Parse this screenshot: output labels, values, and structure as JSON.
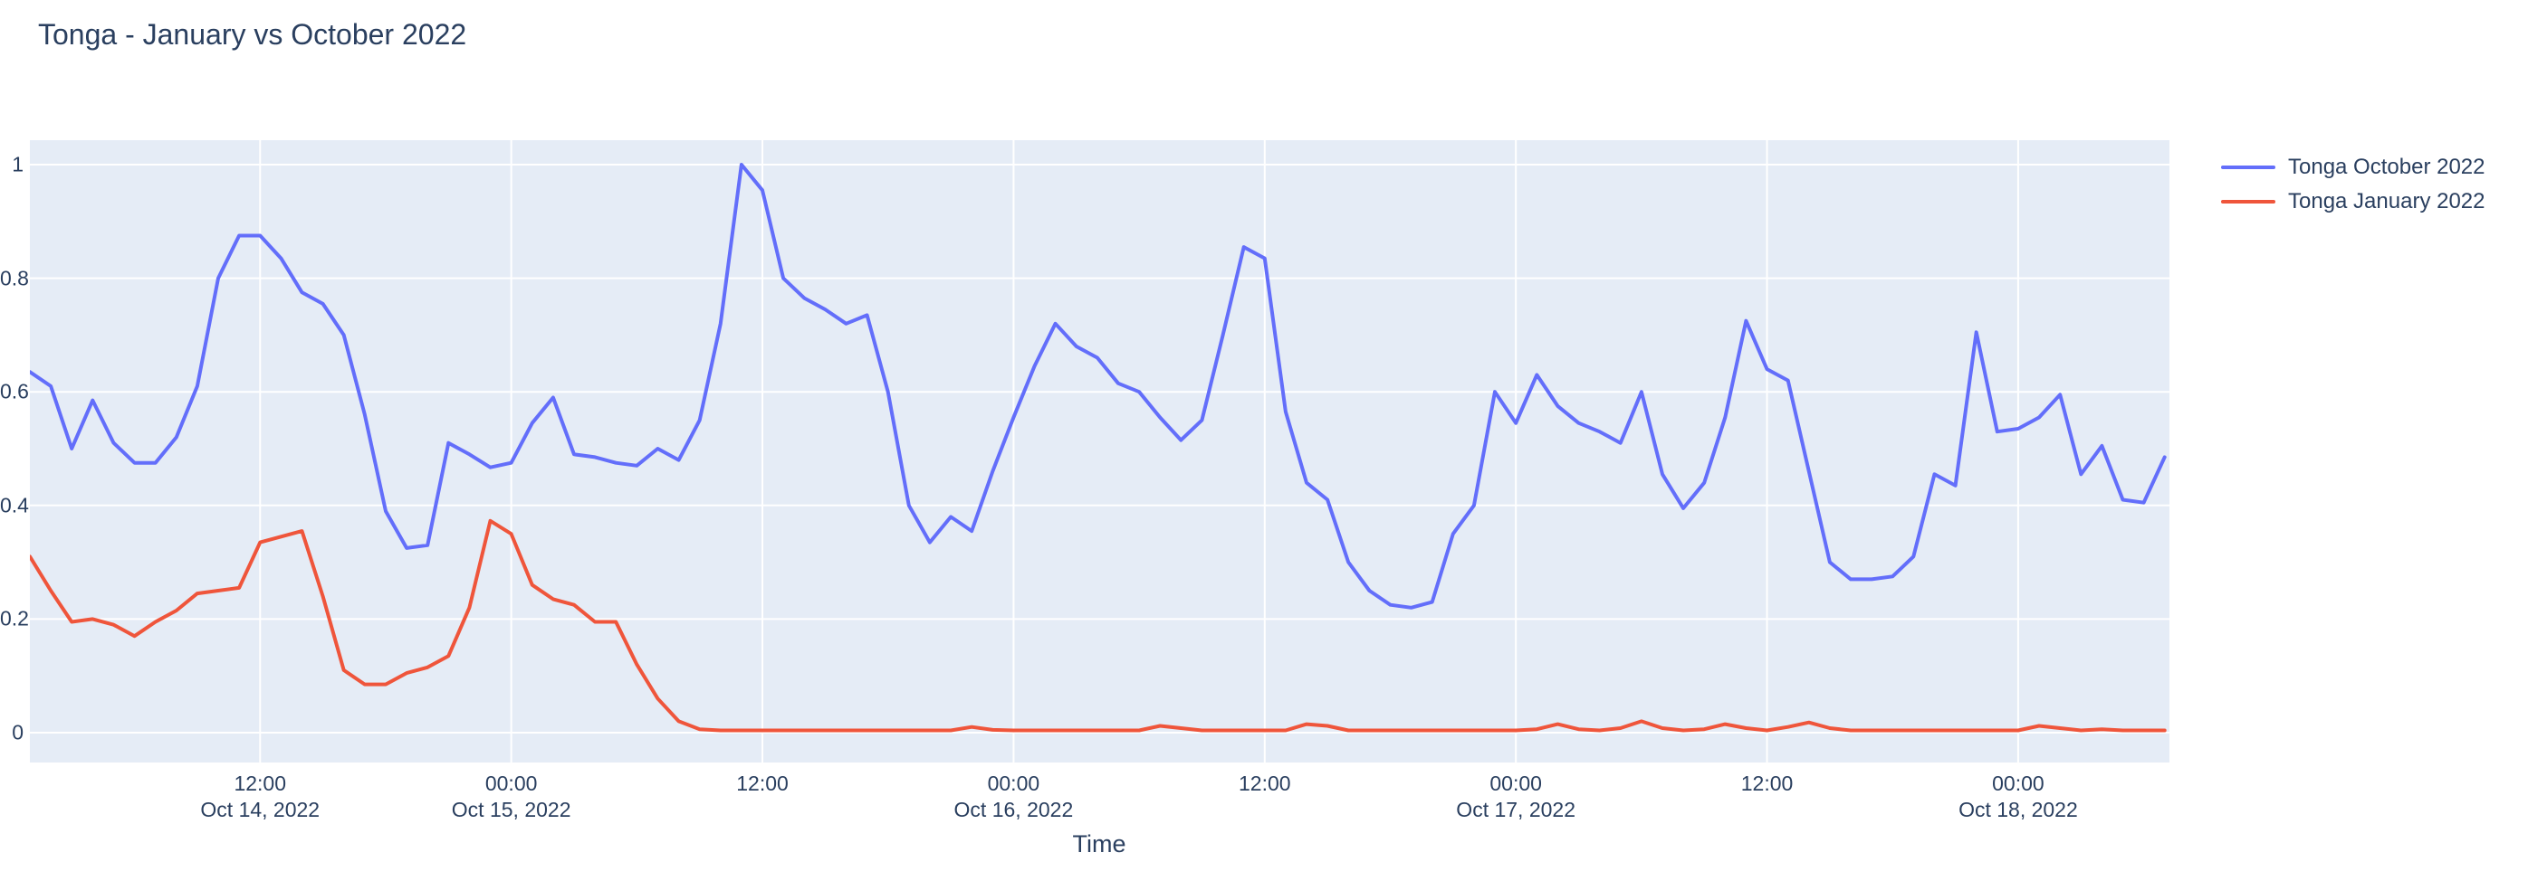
{
  "page_title": "Tonga - January vs October 2022",
  "colors": {
    "text": "#2a3f5f",
    "plot_background": "#E5ECF6",
    "gridline": "#ffffff",
    "series_october": "#636EFA",
    "series_january": "#EF553B"
  },
  "chart_data": {
    "type": "line",
    "title": "Tonga - January vs October 2022",
    "xlabel": "Time",
    "ylabel": "",
    "x_start": "2022-10-14 01:00",
    "x_step_hours": 1,
    "n_points": 103,
    "ylim": [
      0,
      1
    ],
    "grid": true,
    "legend_position": "outside-top-right",
    "yticks": [
      {
        "value": 0,
        "label": "0"
      },
      {
        "value": 0.2,
        "label": "0.2"
      },
      {
        "value": 0.4,
        "label": "0.4"
      },
      {
        "value": 0.6,
        "label": "0.6"
      },
      {
        "value": 0.8,
        "label": "0.8"
      },
      {
        "value": 1,
        "label": "1"
      }
    ],
    "xticks": [
      {
        "hour_index": 11,
        "time": "12:00",
        "date": "Oct 14, 2022"
      },
      {
        "hour_index": 23,
        "time": "00:00",
        "date": "Oct 15, 2022"
      },
      {
        "hour_index": 35,
        "time": "12:00",
        "date": ""
      },
      {
        "hour_index": 47,
        "time": "00:00",
        "date": "Oct 16, 2022"
      },
      {
        "hour_index": 59,
        "time": "12:00",
        "date": ""
      },
      {
        "hour_index": 71,
        "time": "00:00",
        "date": "Oct 17, 2022"
      },
      {
        "hour_index": 83,
        "time": "12:00",
        "date": ""
      },
      {
        "hour_index": 95,
        "time": "00:00",
        "date": "Oct 18, 2022"
      }
    ],
    "series": [
      {
        "name": "Tonga October 2022",
        "color": "#636EFA",
        "values": [
          0.635,
          0.61,
          0.5,
          0.585,
          0.51,
          0.475,
          0.475,
          0.52,
          0.61,
          0.8,
          0.875,
          0.875,
          0.835,
          0.775,
          0.755,
          0.7,
          0.56,
          0.39,
          0.325,
          0.33,
          0.51,
          0.49,
          0.467,
          0.475,
          0.545,
          0.59,
          0.49,
          0.485,
          0.475,
          0.47,
          0.5,
          0.48,
          0.55,
          0.72,
          1.0,
          0.955,
          0.8,
          0.765,
          0.745,
          0.72,
          0.735,
          0.6,
          0.4,
          0.335,
          0.38,
          0.355,
          0.46,
          0.555,
          0.645,
          0.72,
          0.68,
          0.66,
          0.615,
          0.6,
          0.555,
          0.515,
          0.55,
          0.7,
          0.855,
          0.835,
          0.565,
          0.44,
          0.41,
          0.3,
          0.25,
          0.225,
          0.22,
          0.23,
          0.35,
          0.4,
          0.6,
          0.545,
          0.63,
          0.575,
          0.545,
          0.53,
          0.51,
          0.6,
          0.455,
          0.395,
          0.44,
          0.555,
          0.725,
          0.64,
          0.62,
          0.46,
          0.3,
          0.27,
          0.27,
          0.275,
          0.31,
          0.455,
          0.435,
          0.705,
          0.53,
          0.535,
          0.555,
          0.595,
          0.455,
          0.505,
          0.41,
          0.405,
          0.485
        ]
      },
      {
        "name": "Tonga January 2022",
        "color": "#EF553B",
        "values": [
          0.31,
          0.25,
          0.195,
          0.2,
          0.19,
          0.17,
          0.195,
          0.215,
          0.245,
          0.25,
          0.255,
          0.335,
          0.345,
          0.355,
          0.24,
          0.11,
          0.085,
          0.085,
          0.105,
          0.115,
          0.135,
          0.22,
          0.373,
          0.35,
          0.26,
          0.235,
          0.225,
          0.195,
          0.195,
          0.12,
          0.06,
          0.02,
          0.006,
          0.004,
          0.004,
          0.004,
          0.004,
          0.004,
          0.004,
          0.004,
          0.004,
          0.004,
          0.004,
          0.004,
          0.004,
          0.01,
          0.005,
          0.004,
          0.004,
          0.004,
          0.004,
          0.004,
          0.004,
          0.004,
          0.012,
          0.008,
          0.004,
          0.004,
          0.004,
          0.004,
          0.004,
          0.015,
          0.012,
          0.004,
          0.004,
          0.004,
          0.004,
          0.004,
          0.004,
          0.004,
          0.004,
          0.004,
          0.006,
          0.015,
          0.006,
          0.004,
          0.008,
          0.02,
          0.008,
          0.004,
          0.006,
          0.015,
          0.008,
          0.004,
          0.01,
          0.018,
          0.008,
          0.004,
          0.004,
          0.004,
          0.004,
          0.004,
          0.004,
          0.004,
          0.004,
          0.004,
          0.012,
          0.008,
          0.004,
          0.006,
          0.004,
          0.004,
          0.004
        ]
      }
    ]
  }
}
